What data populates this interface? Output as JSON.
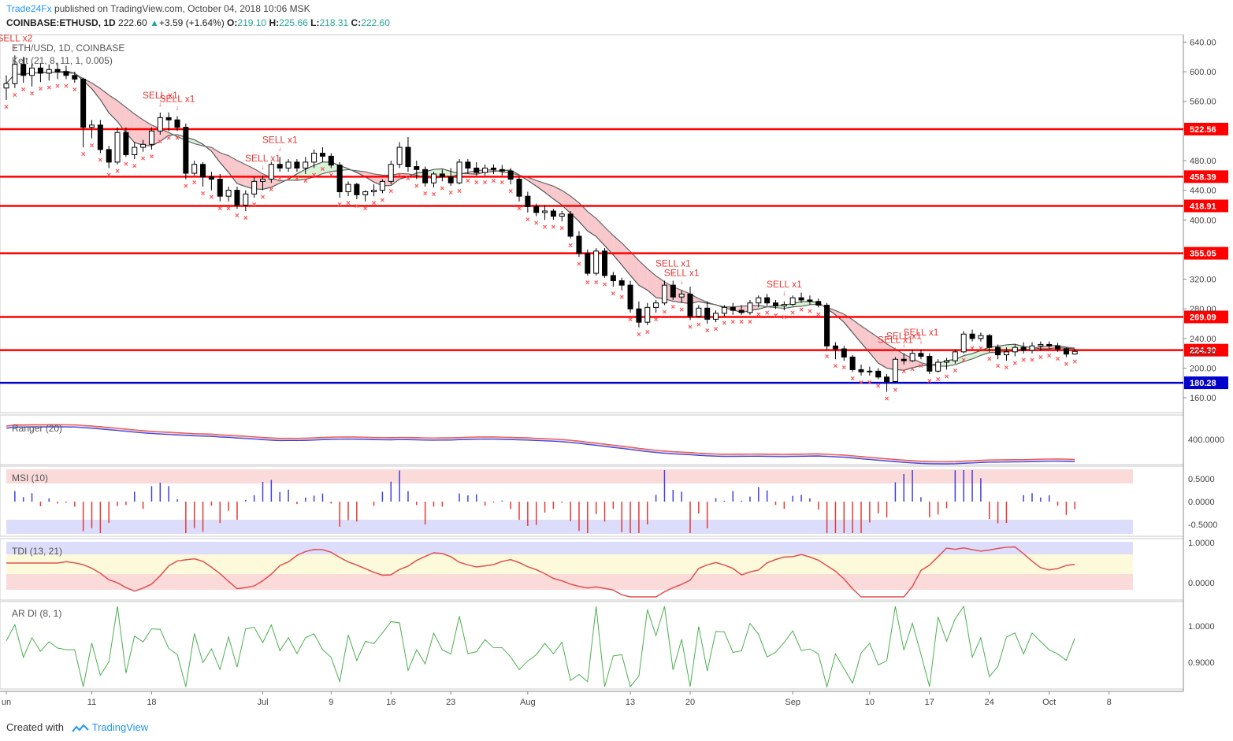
{
  "header": {
    "publisher": "Trade24Fx",
    "published_text": "published on TradingView.com, October 04, 2018 10:06 MSK"
  },
  "symbol_line": {
    "symbol": "COINBASE:ETHUSD, 1D",
    "last": "222.60",
    "change": "+3.59 (+1.64%)",
    "open_label": "O:",
    "open": "219.10",
    "high_label": "H:",
    "high": "225.66",
    "low_label": "L:",
    "low": "218.31",
    "close_label": "C:",
    "close": "222.60"
  },
  "panes": {
    "main": {
      "title": "ETH/USD, 1D, COINBASE",
      "indicator": "Kelt (21, 8, 11, 1, 0.005)"
    },
    "ranger": {
      "title": "Ranger (20)",
      "axis_label": "400.0000"
    },
    "msi": {
      "title": "MSI (10)",
      "axis_labels": [
        "0.5000",
        "0.0000",
        "-0.5000"
      ]
    },
    "tdi": {
      "title": "TDI (13, 21)",
      "axis_labels": [
        "1.0000",
        "0.0000"
      ]
    },
    "ardi": {
      "title": "AR DI (8, 1)",
      "axis_labels": [
        "1.0000",
        "0.9000"
      ]
    }
  },
  "signals": [
    {
      "text": "SELL x2",
      "date": "Jun 2"
    },
    {
      "text": "SELL x1",
      "date": "Jun 19"
    },
    {
      "text": "SELL x1",
      "date": "Jun 21"
    },
    {
      "text": "SELL x1",
      "date": "Jul 3"
    },
    {
      "text": "SELL x1",
      "date": "Jul 1"
    },
    {
      "text": "SELL x1",
      "date": "Aug 18"
    },
    {
      "text": "SELL x1",
      "date": "Aug 19"
    },
    {
      "text": "SELL x1",
      "date": "Aug 31"
    },
    {
      "text": "SELL x1",
      "date": "Sep 13"
    },
    {
      "text": "SELL x1",
      "date": "Sep 14"
    },
    {
      "text": "SELL x1",
      "date": "Sep 16"
    }
  ],
  "footer": {
    "created_with": "Created with",
    "brand": "TradingView"
  },
  "colors": {
    "resistance_line": "#ff0000",
    "support_line": "#0000cc",
    "up_candle": "#ffffff",
    "down_candle": "#000000",
    "cross_marker": "#ff5252",
    "cloud_pink": "#f8c8cc",
    "cloud_green": "#d8f4d8"
  },
  "chart_data": {
    "type": "candlestick",
    "title": "ETH/USD, 1D, COINBASE",
    "x_tick_labels": [
      "un",
      "11",
      "18",
      "Jul",
      "9",
      "16",
      "23",
      "Aug",
      "13",
      "20",
      "Sep",
      "10",
      "17",
      "24",
      "Oct",
      "8"
    ],
    "y_tick_labels": [
      "640.00",
      "600.00",
      "560.00",
      "480.00",
      "440.00",
      "400.00",
      "320.00",
      "280.00",
      "240.00",
      "200.00",
      "160.00"
    ],
    "ylim": [
      140,
      650
    ],
    "horizontal_levels": [
      {
        "value": 522.56,
        "label": "522.56",
        "color": "#ff0000"
      },
      {
        "value": 458.39,
        "label": "458.39",
        "color": "#ff0000"
      },
      {
        "value": 418.91,
        "label": "418.91",
        "color": "#ff0000"
      },
      {
        "value": 355.05,
        "label": "355.05",
        "color": "#ff0000"
      },
      {
        "value": 269.09,
        "label": "269.09",
        "color": "#ff0000"
      },
      {
        "value": 224.3,
        "label": "224.30",
        "color": "#ff0000"
      },
      {
        "value": 180.28,
        "label": "180.28",
        "color": "#0000cc"
      }
    ],
    "last_price": {
      "value": 222.6,
      "label": "222.60"
    },
    "ohlc": [
      [
        "2018-06-01",
        578,
        595,
        562,
        584
      ],
      [
        "2018-06-02",
        584,
        622,
        578,
        610
      ],
      [
        "2018-06-03",
        610,
        620,
        585,
        595
      ],
      [
        "2018-06-04",
        595,
        612,
        580,
        605
      ],
      [
        "2018-06-05",
        605,
        612,
        586,
        598
      ],
      [
        "2018-06-06",
        598,
        610,
        588,
        603
      ],
      [
        "2018-06-07",
        603,
        612,
        590,
        600
      ],
      [
        "2018-06-08",
        600,
        608,
        590,
        595
      ],
      [
        "2018-06-09",
        595,
        600,
        585,
        590
      ],
      [
        "2018-06-10",
        590,
        592,
        498,
        525
      ],
      [
        "2018-06-11",
        525,
        535,
        510,
        528
      ],
      [
        "2018-06-12",
        528,
        535,
        490,
        495
      ],
      [
        "2018-06-13",
        495,
        500,
        470,
        478
      ],
      [
        "2018-06-14",
        478,
        525,
        475,
        518
      ],
      [
        "2018-06-15",
        518,
        525,
        485,
        488
      ],
      [
        "2018-06-16",
        488,
        505,
        482,
        498
      ],
      [
        "2018-06-17",
        498,
        508,
        492,
        502
      ],
      [
        "2018-06-18",
        502,
        525,
        495,
        520
      ],
      [
        "2018-06-19",
        520,
        545,
        515,
        538
      ],
      [
        "2018-06-20",
        538,
        545,
        520,
        535
      ],
      [
        "2018-06-21",
        535,
        540,
        520,
        525
      ],
      [
        "2018-06-22",
        525,
        530,
        455,
        463
      ],
      [
        "2018-06-23",
        463,
        480,
        460,
        475
      ],
      [
        "2018-06-24",
        475,
        478,
        445,
        458
      ],
      [
        "2018-06-25",
        458,
        465,
        440,
        455
      ],
      [
        "2018-06-26",
        455,
        462,
        425,
        432
      ],
      [
        "2018-06-27",
        432,
        445,
        425,
        440
      ],
      [
        "2018-06-28",
        440,
        445,
        415,
        420
      ],
      [
        "2018-06-29",
        420,
        440,
        412,
        435
      ],
      [
        "2018-06-30",
        435,
        458,
        430,
        452
      ],
      [
        "2018-07-01",
        452,
        460,
        440,
        455
      ],
      [
        "2018-07-02",
        455,
        478,
        450,
        475
      ],
      [
        "2018-07-03",
        475,
        485,
        465,
        470
      ],
      [
        "2018-07-04",
        470,
        482,
        465,
        478
      ],
      [
        "2018-07-05",
        478,
        482,
        465,
        470
      ],
      [
        "2018-07-06",
        470,
        485,
        462,
        478
      ],
      [
        "2018-07-07",
        478,
        495,
        470,
        490
      ],
      [
        "2018-07-08",
        490,
        498,
        478,
        486
      ],
      [
        "2018-07-09",
        486,
        490,
        470,
        474
      ],
      [
        "2018-07-10",
        474,
        478,
        430,
        438
      ],
      [
        "2018-07-11",
        438,
        452,
        432,
        448
      ],
      [
        "2018-07-12",
        448,
        450,
        428,
        434
      ],
      [
        "2018-07-13",
        434,
        440,
        425,
        438
      ],
      [
        "2018-07-14",
        438,
        448,
        432,
        440
      ],
      [
        "2018-07-15",
        440,
        455,
        436,
        452
      ],
      [
        "2018-07-16",
        452,
        480,
        448,
        475
      ],
      [
        "2018-07-17",
        475,
        505,
        470,
        498
      ],
      [
        "2018-07-18",
        498,
        512,
        465,
        472
      ],
      [
        "2018-07-19",
        472,
        480,
        455,
        468
      ],
      [
        "2018-07-20",
        468,
        472,
        445,
        450
      ],
      [
        "2018-07-21",
        450,
        465,
        444,
        462
      ],
      [
        "2018-07-22",
        462,
        468,
        452,
        458
      ],
      [
        "2018-07-23",
        458,
        470,
        446,
        450
      ],
      [
        "2018-07-24",
        450,
        482,
        448,
        478
      ],
      [
        "2018-07-25",
        478,
        482,
        462,
        470
      ],
      [
        "2018-07-26",
        470,
        478,
        460,
        464
      ],
      [
        "2018-07-27",
        464,
        475,
        460,
        470
      ],
      [
        "2018-07-28",
        470,
        475,
        462,
        468
      ],
      [
        "2018-07-29",
        468,
        474,
        460,
        466
      ],
      [
        "2018-07-30",
        466,
        470,
        448,
        455
      ],
      [
        "2018-07-31",
        455,
        458,
        425,
        432
      ],
      [
        "2018-08-01",
        432,
        438,
        410,
        418
      ],
      [
        "2018-08-02",
        418,
        422,
        405,
        410
      ],
      [
        "2018-08-03",
        410,
        420,
        400,
        412
      ],
      [
        "2018-08-04",
        412,
        415,
        400,
        405
      ],
      [
        "2018-08-05",
        405,
        412,
        398,
        408
      ],
      [
        "2018-08-06",
        408,
        412,
        375,
        378
      ],
      [
        "2018-08-07",
        378,
        385,
        350,
        355
      ],
      [
        "2018-08-08",
        355,
        360,
        325,
        328
      ],
      [
        "2018-08-09",
        328,
        362,
        325,
        358
      ],
      [
        "2018-08-10",
        358,
        362,
        322,
        325
      ],
      [
        "2018-08-11",
        325,
        330,
        310,
        318
      ],
      [
        "2018-08-12",
        318,
        322,
        305,
        312
      ],
      [
        "2018-08-13",
        312,
        318,
        275,
        280
      ],
      [
        "2018-08-14",
        280,
        290,
        255,
        262
      ],
      [
        "2018-08-15",
        262,
        288,
        258,
        282
      ],
      [
        "2018-08-16",
        282,
        292,
        275,
        288
      ],
      [
        "2018-08-17",
        288,
        318,
        285,
        312
      ],
      [
        "2018-08-18",
        312,
        318,
        292,
        296
      ],
      [
        "2018-08-19",
        296,
        305,
        288,
        300
      ],
      [
        "2018-08-20",
        300,
        310,
        265,
        270
      ],
      [
        "2018-08-21",
        270,
        285,
        268,
        281
      ],
      [
        "2018-08-22",
        281,
        290,
        260,
        266
      ],
      [
        "2018-08-23",
        266,
        278,
        262,
        274
      ],
      [
        "2018-08-24",
        274,
        285,
        270,
        282
      ],
      [
        "2018-08-25",
        282,
        288,
        272,
        278
      ],
      [
        "2018-08-26",
        278,
        285,
        272,
        275
      ],
      [
        "2018-08-27",
        275,
        292,
        272,
        288
      ],
      [
        "2018-08-28",
        288,
        298,
        282,
        295
      ],
      [
        "2018-08-29",
        295,
        300,
        284,
        288
      ],
      [
        "2018-08-30",
        288,
        292,
        280,
        284
      ],
      [
        "2018-08-31",
        284,
        290,
        278,
        286
      ],
      [
        "2018-09-01",
        286,
        298,
        284,
        295
      ],
      [
        "2018-09-02",
        295,
        302,
        288,
        292
      ],
      [
        "2018-09-03",
        292,
        298,
        286,
        290
      ],
      [
        "2018-09-04",
        290,
        294,
        282,
        285
      ],
      [
        "2018-09-05",
        285,
        288,
        225,
        230
      ],
      [
        "2018-09-06",
        230,
        235,
        212,
        226
      ],
      [
        "2018-09-07",
        226,
        230,
        210,
        215
      ],
      [
        "2018-09-08",
        215,
        218,
        195,
        198
      ],
      [
        "2018-09-09",
        198,
        205,
        190,
        195
      ],
      [
        "2018-09-10",
        195,
        202,
        190,
        196
      ],
      [
        "2018-09-11",
        196,
        200,
        185,
        188
      ],
      [
        "2018-09-12",
        188,
        192,
        168,
        182
      ],
      [
        "2018-09-13",
        182,
        215,
        180,
        212
      ],
      [
        "2018-09-14",
        212,
        220,
        205,
        210
      ],
      [
        "2018-09-15",
        210,
        225,
        208,
        220
      ],
      [
        "2018-09-16",
        220,
        225,
        212,
        216
      ],
      [
        "2018-09-17",
        216,
        220,
        192,
        196
      ],
      [
        "2018-09-18",
        196,
        212,
        194,
        208
      ],
      [
        "2018-09-19",
        208,
        214,
        198,
        210
      ],
      [
        "2018-09-20",
        210,
        225,
        206,
        222
      ],
      [
        "2018-09-21",
        222,
        250,
        220,
        246
      ],
      [
        "2018-09-22",
        246,
        252,
        236,
        240
      ],
      [
        "2018-09-23",
        240,
        248,
        236,
        244
      ],
      [
        "2018-09-24",
        244,
        246,
        222,
        228
      ],
      [
        "2018-09-25",
        228,
        232,
        212,
        218
      ],
      [
        "2018-09-26",
        218,
        228,
        210,
        222
      ],
      [
        "2018-09-27",
        222,
        232,
        216,
        228
      ],
      [
        "2018-09-28",
        228,
        235,
        220,
        224
      ],
      [
        "2018-09-29",
        224,
        235,
        220,
        230
      ],
      [
        "2018-09-30",
        230,
        236,
        224,
        232
      ],
      [
        "2018-10-01",
        232,
        236,
        226,
        230
      ],
      [
        "2018-10-02",
        230,
        234,
        222,
        226
      ],
      [
        "2018-10-03",
        226,
        228,
        215,
        219
      ],
      [
        "2018-10-04",
        219.1,
        225.66,
        218.31,
        222.6
      ]
    ]
  }
}
